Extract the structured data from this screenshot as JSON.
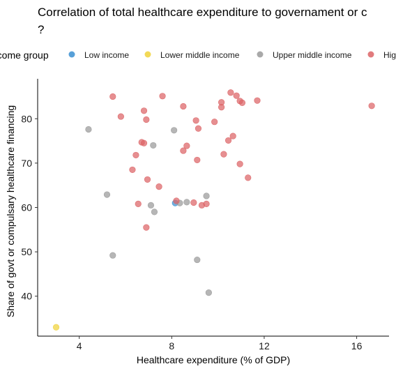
{
  "chart_data": {
    "type": "scatter",
    "title_line1": "Correlation of total healthcare expenditure to governament or c",
    "title_line2": "?",
    "xlabel": "Healthcare expenditure (% of GDP)",
    "ylabel": "Share of govt or compulsary healthcare financing",
    "xlim": [
      2.2,
      17.4
    ],
    "ylim": [
      31,
      89
    ],
    "xticks": [
      4,
      8,
      12,
      16
    ],
    "yticks": [
      40,
      50,
      60,
      70,
      80
    ],
    "grid": false,
    "legend": {
      "title": "Income group",
      "position": "top"
    },
    "series": [
      {
        "name": "Low income",
        "color": "#3a8fd1",
        "points": [
          [
            8.15,
            61.0
          ]
        ]
      },
      {
        "name": "Lower middle income",
        "color": "#f0d23a",
        "points": [
          [
            3.0,
            33.0
          ]
        ]
      },
      {
        "name": "Upper middle income",
        "color": "#9a9a9a",
        "points": [
          [
            4.4,
            77.6
          ],
          [
            5.2,
            62.9
          ],
          [
            5.45,
            49.2
          ],
          [
            7.1,
            60.5
          ],
          [
            7.2,
            74.0
          ],
          [
            7.25,
            59.0
          ],
          [
            8.1,
            77.4
          ],
          [
            8.35,
            61.0
          ],
          [
            8.65,
            61.2
          ],
          [
            9.1,
            48.2
          ],
          [
            9.5,
            62.6
          ],
          [
            9.6,
            40.8
          ]
        ]
      },
      {
        "name": "High income",
        "color": "#dc6466",
        "points": [
          [
            5.45,
            85.0
          ],
          [
            5.8,
            80.5
          ],
          [
            6.3,
            68.5
          ],
          [
            6.45,
            71.8
          ],
          [
            6.55,
            60.8
          ],
          [
            6.7,
            74.7
          ],
          [
            6.8,
            74.5
          ],
          [
            6.8,
            81.8
          ],
          [
            6.9,
            79.8
          ],
          [
            6.9,
            55.5
          ],
          [
            6.95,
            66.3
          ],
          [
            7.45,
            64.7
          ],
          [
            7.6,
            85.1
          ],
          [
            8.2,
            61.5
          ],
          [
            8.5,
            82.8
          ],
          [
            8.5,
            72.8
          ],
          [
            8.65,
            73.9
          ],
          [
            8.95,
            61.1
          ],
          [
            9.05,
            79.6
          ],
          [
            9.1,
            70.7
          ],
          [
            9.15,
            77.8
          ],
          [
            9.3,
            60.5
          ],
          [
            9.5,
            60.8
          ],
          [
            9.85,
            79.3
          ],
          [
            10.15,
            83.7
          ],
          [
            10.15,
            82.6
          ],
          [
            10.25,
            72.0
          ],
          [
            10.45,
            75.1
          ],
          [
            10.55,
            85.9
          ],
          [
            10.65,
            76.1
          ],
          [
            10.8,
            85.2
          ],
          [
            10.95,
            69.8
          ],
          [
            10.95,
            84.0
          ],
          [
            11.05,
            83.6
          ],
          [
            11.3,
            66.7
          ],
          [
            11.7,
            84.1
          ],
          [
            16.65,
            82.9
          ]
        ]
      }
    ]
  }
}
